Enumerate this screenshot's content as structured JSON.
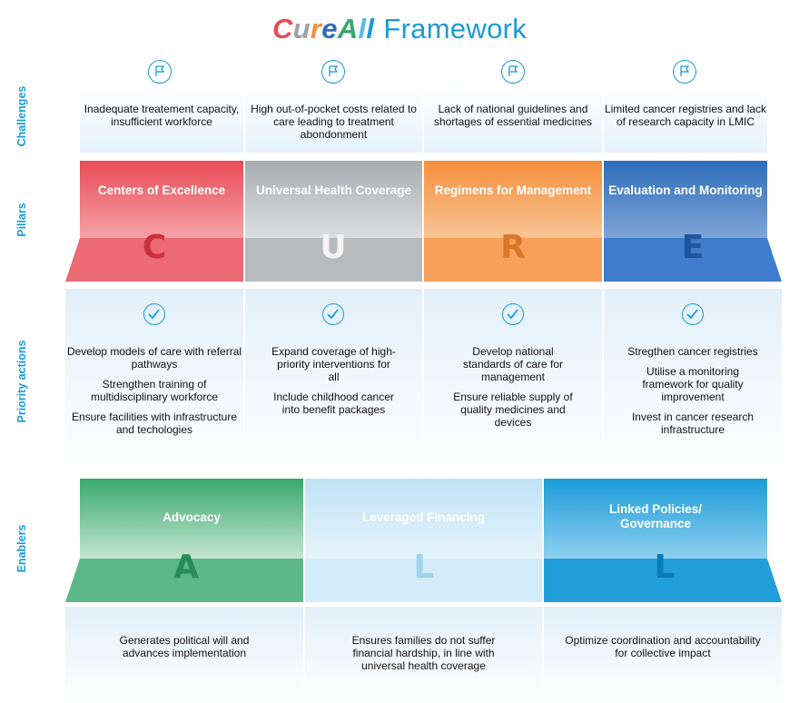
{
  "title": {
    "brand_letters": [
      {
        "char": "C",
        "color": "#e84b55"
      },
      {
        "char": "u",
        "color": "#9ea3a7"
      },
      {
        "char": "r",
        "color": "#f48f3b"
      },
      {
        "char": "e",
        "color": "#2e6dbb"
      },
      {
        "char": "A",
        "color": "#3aa76d"
      },
      {
        "char": "l",
        "color": "#58b9e6"
      },
      {
        "char": "l",
        "color": "#1a9bd7"
      }
    ],
    "framework": "Framework"
  },
  "row_labels": {
    "challenges": "Challenges",
    "pillars": "Pillars",
    "priority_actions": "Priority actions",
    "enablers": "Enablers"
  },
  "challenges": [
    {
      "text": "Inadequate treatement capacity, insufficient workforce",
      "icon": "flag-icon"
    },
    {
      "text": "High out-of-pocket costs related to care leading to treatment abondonment",
      "icon": "flag-icon"
    },
    {
      "text": "Lack of national guidelines and shortages of essential medicines",
      "icon": "flag-icon"
    },
    {
      "text": "Limited cancer registries and lack of research capacity in LMIC",
      "icon": "flag-icon"
    }
  ],
  "pillars": [
    {
      "title": "Centers of Excellence",
      "letter": "C",
      "color": "#e84b55"
    },
    {
      "title": "Universal Health Coverage",
      "letter": "U",
      "color": "#a9acaf"
    },
    {
      "title": "Regimens for Management",
      "letter": "R",
      "color": "#f48f3b"
    },
    {
      "title": "Evaluation and Monitoring",
      "letter": "E",
      "color": "#2e6dbb"
    }
  ],
  "priority_actions": [
    {
      "items": [
        "Develop models of care with referral pathways",
        "Strengthen training of multidisciplinary workforce",
        "Ensure facilities with infrastructure and techologies"
      ]
    },
    {
      "items": [
        "Expand coverage of high-priority interventions for all",
        "Include childhood cancer into benefit packages"
      ]
    },
    {
      "items": [
        "Develop national standards of care for management",
        "Ensure reliable supply of quality medicines and devices"
      ]
    },
    {
      "items": [
        "Stregthen cancer registries",
        "Utilise a monitoring framework for quality improvement",
        "Invest in cancer research infrastructure"
      ]
    }
  ],
  "enablers": [
    {
      "title": "Advocacy",
      "letter": "A",
      "color": "#3aa76d",
      "description": "Generates political will and advances implementation"
    },
    {
      "title": "Leveraged Financing",
      "letter": "L",
      "color": "#7cc5ea",
      "description": "Ensures families do not suffer financial hardship, in line with universal health coverage"
    },
    {
      "title": "Linked Policies/ Governance",
      "letter": "L",
      "color": "#1a9bd7",
      "description": "Optimize coordination and accountability for collective impact"
    }
  ]
}
